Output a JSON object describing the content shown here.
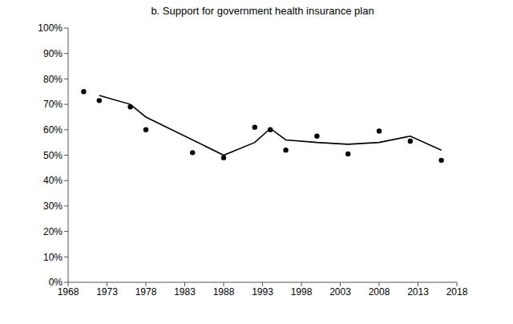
{
  "chart_data": {
    "type": "scatter",
    "title": "b. Support for government health insurance plan",
    "xlim": [
      1968,
      2018
    ],
    "xticks": [
      1968,
      1973,
      1978,
      1983,
      1988,
      1993,
      1998,
      2003,
      2008,
      2013,
      2018
    ],
    "ylim": [
      0,
      100
    ],
    "yticks": [
      {
        "value": 0,
        "label": "0%"
      },
      {
        "value": 10,
        "label": "10%"
      },
      {
        "value": 20,
        "label": "20%"
      },
      {
        "value": 30,
        "label": "30%"
      },
      {
        "value": 40,
        "label": "40%"
      },
      {
        "value": 50,
        "label": "50%"
      },
      {
        "value": 60,
        "label": "60%"
      },
      {
        "value": 70,
        "label": "70%"
      },
      {
        "value": 80,
        "label": "80%"
      },
      {
        "value": 90,
        "label": "90%"
      },
      {
        "value": 100,
        "label": "100%"
      }
    ],
    "grid": false,
    "series": [
      {
        "type": "scatter",
        "marker": "circle",
        "color": "#000000",
        "x": [
          1970,
          1972,
          1976,
          1978,
          1984,
          1988,
          1992,
          1994,
          1996,
          2000,
          2004,
          2008,
          2012,
          2016
        ],
        "values": [
          75,
          71.5,
          69,
          60,
          51,
          49,
          61,
          60,
          52,
          57.5,
          50.5,
          59.5,
          55.5,
          48
        ]
      },
      {
        "type": "line",
        "line_style": "solid",
        "color": "#000000",
        "x": [
          1972,
          1976,
          1978,
          1988,
          1992,
          1994,
          1996,
          2000,
          2004,
          2008,
          2012,
          2016
        ],
        "values": [
          73.5,
          70,
          65,
          50,
          55,
          60.5,
          56,
          55,
          54.3,
          55,
          57.5,
          52
        ]
      }
    ]
  }
}
